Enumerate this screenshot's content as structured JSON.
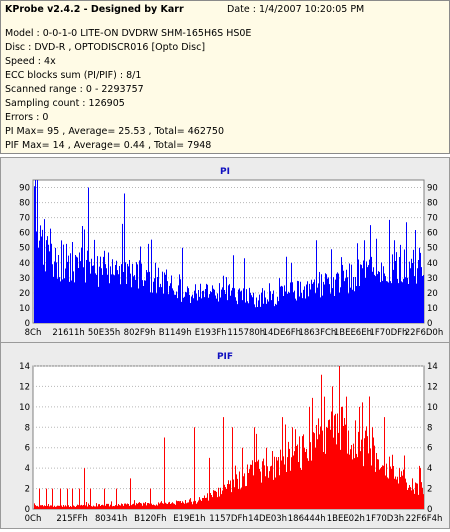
{
  "header": {
    "title": "KProbe v2.4.2 - Designed by Karr",
    "date": "Date : 1/4/2007 10:20:05 PM",
    "lines": [
      "Model : 0-0-1-0 LITE-ON DVDRW SHM-165H6S HS0E",
      "Disc : DVD-R , OPTODISCR016 [Opto Disc]",
      "Speed : 4x",
      "ECC blocks sum (PI/PIF) : 8/1",
      "Scanned range : 0 - 2293757",
      "Sampling count : 126905",
      "Errors : 0",
      "PI Max= 95 , Average= 25.53 , Total= 462750",
      "PIF Max= 14 , Average= 0.44 , Total= 7948"
    ]
  },
  "colors": {
    "pi": "#0000ff",
    "pif": "#ff0000",
    "panel_bg": "#ececec",
    "plot_bg": "#ffffff",
    "info_bg": "#fffbe6",
    "title_color": "#1010c0"
  },
  "chart_data": [
    {
      "type": "bar",
      "title": "PI",
      "ylim": [
        0,
        95
      ],
      "yticks": [
        0,
        10,
        20,
        30,
        40,
        50,
        60,
        70,
        80,
        90
      ],
      "xticks": [
        "8Ch",
        "21611h",
        "50E35h",
        "802F9h",
        "B1149h",
        "E193Fh",
        "115780h",
        "14DE6Fh",
        "1863FCh",
        "1BEE6Eh",
        "1F70DFh",
        "22F6D0h"
      ],
      "grid": true,
      "profile": [
        [
          0,
          78
        ],
        [
          2,
          66
        ],
        [
          6,
          56
        ],
        [
          12,
          49
        ],
        [
          20,
          44
        ],
        [
          30,
          41
        ],
        [
          40,
          40
        ],
        [
          50,
          38
        ],
        [
          60,
          37
        ],
        [
          70,
          36
        ],
        [
          80,
          35
        ],
        [
          90,
          34
        ],
        [
          100,
          32
        ],
        [
          110,
          30
        ],
        [
          120,
          28
        ],
        [
          130,
          26
        ],
        [
          140,
          23
        ],
        [
          150,
          21
        ],
        [
          160,
          20
        ],
        [
          170,
          20
        ],
        [
          180,
          21
        ],
        [
          190,
          20
        ],
        [
          200,
          19
        ],
        [
          210,
          17
        ],
        [
          220,
          16
        ],
        [
          230,
          15
        ],
        [
          240,
          17
        ],
        [
          250,
          20
        ],
        [
          260,
          22
        ],
        [
          270,
          23
        ],
        [
          280,
          24
        ],
        [
          290,
          25
        ],
        [
          300,
          27
        ],
        [
          310,
          29
        ],
        [
          320,
          31
        ],
        [
          330,
          33
        ],
        [
          340,
          35
        ],
        [
          350,
          36
        ],
        [
          360,
          36
        ],
        [
          370,
          37
        ],
        [
          380,
          38
        ],
        [
          391,
          38
        ]
      ],
      "spikes": [
        [
          54,
          90
        ],
        [
          70,
          48
        ],
        [
          90,
          86
        ],
        [
          121,
          40
        ],
        [
          148,
          50
        ],
        [
          199,
          45
        ],
        [
          210,
          43
        ],
        [
          252,
          44
        ],
        [
          282,
          55
        ],
        [
          297,
          49
        ],
        [
          323,
          53
        ],
        [
          330,
          55
        ],
        [
          342,
          56
        ],
        [
          360,
          55
        ],
        [
          385,
          50
        ]
      ]
    },
    {
      "type": "bar",
      "title": "PIF",
      "ylim": [
        0,
        14
      ],
      "yticks": [
        0,
        2,
        4,
        6,
        8,
        10,
        12,
        14
      ],
      "xticks": [
        "0Ch",
        "215FFh",
        "80341h",
        "B120Fh",
        "E19E1h",
        "1157DFh",
        "14DE03h",
        "186444h",
        "1BEE02h",
        "1F70D3h",
        "22F6F4h"
      ],
      "grid": true,
      "profile": [
        [
          0,
          0.3
        ],
        [
          40,
          0.3
        ],
        [
          80,
          0.4
        ],
        [
          120,
          0.5
        ],
        [
          160,
          0.7
        ],
        [
          190,
          1.8
        ],
        [
          200,
          2.6
        ],
        [
          210,
          3.2
        ],
        [
          220,
          3.8
        ],
        [
          230,
          4.0
        ],
        [
          240,
          4.4
        ],
        [
          250,
          4.8
        ],
        [
          260,
          5.3
        ],
        [
          270,
          5.8
        ],
        [
          280,
          6.3
        ],
        [
          290,
          7.0
        ],
        [
          300,
          7.4
        ],
        [
          310,
          7.6
        ],
        [
          320,
          6.8
        ],
        [
          330,
          6.2
        ],
        [
          340,
          5.4
        ],
        [
          350,
          4.6
        ],
        [
          360,
          3.6
        ],
        [
          370,
          2.8
        ],
        [
          380,
          2.2
        ],
        [
          391,
          2.0
        ]
      ],
      "spikes": [
        [
          5,
          2
        ],
        [
          12,
          2
        ],
        [
          18,
          2
        ],
        [
          26,
          2
        ],
        [
          33,
          2
        ],
        [
          38,
          2
        ],
        [
          45,
          2
        ],
        [
          50,
          4
        ],
        [
          56,
          2
        ],
        [
          70,
          2
        ],
        [
          82,
          2
        ],
        [
          96,
          3
        ],
        [
          116,
          2
        ],
        [
          130,
          7
        ],
        [
          160,
          8
        ],
        [
          175,
          5
        ],
        [
          189,
          9
        ],
        [
          198,
          8
        ],
        [
          208,
          6
        ],
        [
          220,
          8
        ],
        [
          232,
          6
        ],
        [
          248,
          9
        ],
        [
          258,
          8
        ],
        [
          275,
          10
        ],
        [
          290,
          11
        ],
        [
          298,
          12
        ],
        [
          305,
          14
        ],
        [
          312,
          11
        ],
        [
          325,
          10
        ],
        [
          338,
          8
        ],
        [
          350,
          9
        ],
        [
          365,
          4
        ],
        [
          378,
          3
        ],
        [
          386,
          4
        ]
      ]
    }
  ]
}
